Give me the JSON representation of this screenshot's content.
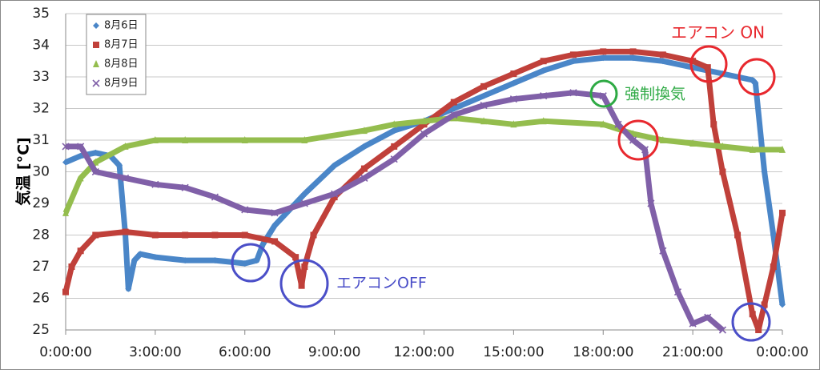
{
  "chart_data": {
    "type": "line",
    "y_label": "気温 [°C]",
    "xlim": [
      0,
      24
    ],
    "ylim": [
      25,
      35
    ],
    "xticks": [
      {
        "value": 0,
        "label": "0:00:00"
      },
      {
        "value": 3,
        "label": "3:00:00"
      },
      {
        "value": 6,
        "label": "6:00:00"
      },
      {
        "value": 9,
        "label": "9:00:00"
      },
      {
        "value": 12,
        "label": "12:00:00"
      },
      {
        "value": 15,
        "label": "15:00:00"
      },
      {
        "value": 18,
        "label": "18:00:00"
      },
      {
        "value": 21,
        "label": "21:00:00"
      },
      {
        "value": 24,
        "label": "0:00:00"
      }
    ],
    "yticks": [
      25,
      26,
      27,
      28,
      29,
      30,
      31,
      32,
      33,
      34,
      35
    ],
    "grid": true,
    "legend": "upper left",
    "annotations": [
      {
        "text": "エアコン ON",
        "color": "#e8282e"
      },
      {
        "text": "強制換気",
        "color": "#2eaa44"
      },
      {
        "text": "エアコンOFF",
        "color": "#4b4fc8"
      }
    ],
    "series": [
      {
        "name": "8月6日",
        "color": "#4a86c8",
        "marker": "diamond",
        "x": [
          0,
          0.5,
          1,
          1.5,
          1.8,
          2.0,
          2.1,
          2.3,
          2.5,
          3,
          4,
          5,
          6,
          6.4,
          6.6,
          7,
          8,
          9,
          10,
          11,
          12,
          13,
          14,
          15,
          16,
          17,
          18,
          19,
          20,
          21,
          22,
          23,
          23.1,
          23.4,
          23.7,
          24
        ],
        "values": [
          30.3,
          30.5,
          30.6,
          30.5,
          30.2,
          28,
          26.3,
          27.2,
          27.4,
          27.3,
          27.2,
          27.2,
          27.1,
          27.2,
          27.7,
          28.3,
          29.3,
          30.2,
          30.8,
          31.3,
          31.6,
          32,
          32.4,
          32.8,
          33.2,
          33.5,
          33.6,
          33.6,
          33.5,
          33.3,
          33.1,
          32.9,
          32.8,
          30,
          28,
          25.8
        ]
      },
      {
        "name": "8月7日",
        "color": "#c0403a",
        "marker": "square",
        "x": [
          0,
          0.2,
          0.5,
          1,
          2,
          3,
          4,
          5,
          6,
          7,
          7.7,
          7.9,
          8,
          8.3,
          9,
          10,
          11,
          12,
          13,
          14,
          15,
          16,
          17,
          18,
          19,
          20,
          21,
          21.5,
          21.7,
          22,
          22.5,
          23,
          23.2,
          23.4,
          23.7,
          24
        ],
        "values": [
          26.2,
          27,
          27.5,
          28,
          28.1,
          28,
          28,
          28,
          28,
          27.8,
          27.3,
          26.4,
          27,
          28,
          29.2,
          30.1,
          30.8,
          31.5,
          32.2,
          32.7,
          33.1,
          33.5,
          33.7,
          33.8,
          33.8,
          33.7,
          33.5,
          33.3,
          31.5,
          30,
          28,
          25.5,
          25,
          25.8,
          27,
          28.7
        ]
      },
      {
        "name": "8月8日",
        "color": "#94bd4e",
        "marker": "triangle",
        "x": [
          0,
          0.5,
          1,
          2,
          3,
          4,
          6,
          8,
          10,
          11,
          12,
          13,
          14,
          15,
          16,
          18,
          19,
          20,
          21,
          22,
          23,
          24
        ],
        "values": [
          28.7,
          29.8,
          30.3,
          30.8,
          31,
          31,
          31,
          31,
          31.3,
          31.5,
          31.6,
          31.7,
          31.6,
          31.5,
          31.6,
          31.5,
          31.2,
          31,
          30.9,
          30.8,
          30.7,
          30.7
        ]
      },
      {
        "name": "8月9日",
        "color": "#8060a8",
        "marker": "cross",
        "x": [
          0,
          0.5,
          1,
          2,
          3,
          4,
          5,
          6,
          7,
          8,
          9,
          10,
          11,
          12,
          13,
          14,
          15,
          16,
          17,
          18,
          18.5,
          19,
          19.4,
          19.6,
          20,
          20.5,
          21,
          21.5,
          22
        ],
        "values": [
          30.8,
          30.8,
          30,
          29.8,
          29.6,
          29.5,
          29.2,
          28.8,
          28.7,
          29,
          29.3,
          29.8,
          30.4,
          31.2,
          31.8,
          32.1,
          32.3,
          32.4,
          32.5,
          32.4,
          31.5,
          31,
          30.7,
          29,
          27.5,
          26.2,
          25.2,
          25.4,
          25
        ]
      }
    ]
  }
}
